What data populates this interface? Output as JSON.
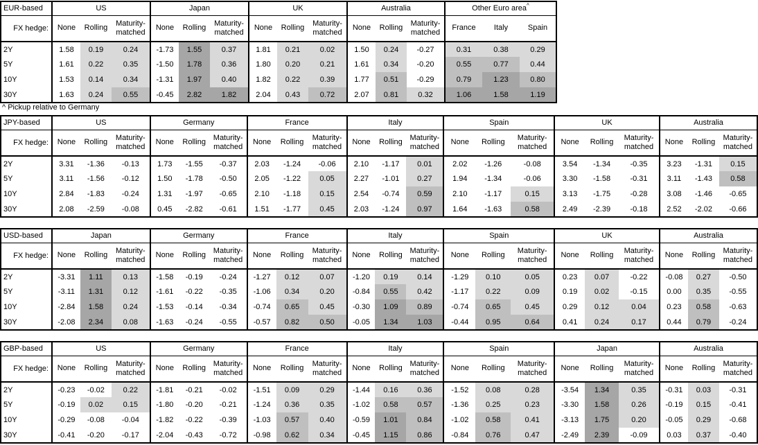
{
  "footnote": "^ Pickup relative to Germany",
  "row_header_label": "FX hedge:",
  "tenors": [
    "2Y",
    "5Y",
    "10Y",
    "30Y"
  ],
  "hedge_columns": [
    "None",
    "Rolling",
    "Maturity-matched"
  ],
  "colors": {
    "shade_light": "#d9d9d9",
    "shade_medium": "#bfbfbf",
    "shade_dark": "#a6a6a6",
    "border": "#000000",
    "background": "#ffffff"
  },
  "shading_rule": {
    "applies_to": "all value columns except None",
    "bands": [
      {
        "range": "0 to 0.5",
        "color": "shade_light"
      },
      {
        "range": "0.5 to 1.0",
        "color": "shade_medium"
      },
      {
        "range": "above 1.0",
        "color": "shade_dark"
      },
      {
        "range": "0 or below",
        "color": "background"
      }
    ]
  },
  "tables": [
    {
      "base": "EUR-based",
      "groups": [
        {
          "name": "US",
          "columns": [
            "None",
            "Rolling",
            "Maturity-matched"
          ],
          "rows": [
            [
              "1.58",
              "0.19",
              "0.24"
            ],
            [
              "1.61",
              "0.22",
              "0.35"
            ],
            [
              "1.53",
              "0.14",
              "0.34"
            ],
            [
              "1.63",
              "0.24",
              "0.55"
            ]
          ]
        },
        {
          "name": "Japan",
          "columns": [
            "None",
            "Rolling",
            "Maturity-matched"
          ],
          "rows": [
            [
              "-1.73",
              "1.55",
              "0.37"
            ],
            [
              "-1.50",
              "1.78",
              "0.36"
            ],
            [
              "-1.31",
              "1.97",
              "0.40"
            ],
            [
              "-0.45",
              "2.82",
              "1.82"
            ]
          ]
        },
        {
          "name": "UK",
          "columns": [
            "None",
            "Rolling",
            "Maturity-matched"
          ],
          "rows": [
            [
              "1.81",
              "0.21",
              "0.02"
            ],
            [
              "1.80",
              "0.20",
              "0.21"
            ],
            [
              "1.82",
              "0.22",
              "0.39"
            ],
            [
              "2.04",
              "0.43",
              "0.72"
            ]
          ]
        },
        {
          "name": "Australia",
          "columns": [
            "None",
            "Rolling",
            "Maturity-matched"
          ],
          "rows": [
            [
              "1.50",
              "0.24",
              "-0.27"
            ],
            [
              "1.61",
              "0.34",
              "-0.20"
            ],
            [
              "1.77",
              "0.51",
              "-0.29"
            ],
            [
              "2.07",
              "0.81",
              "0.32"
            ]
          ]
        },
        {
          "name": "Other Euro area",
          "marker": "^",
          "columns": [
            "France",
            "Italy",
            "Spain"
          ],
          "rows": [
            [
              "0.31",
              "0.38",
              "0.29"
            ],
            [
              "0.55",
              "0.77",
              "0.44"
            ],
            [
              "0.79",
              "1.23",
              "0.80"
            ],
            [
              "1.06",
              "1.58",
              "1.19"
            ]
          ]
        }
      ]
    },
    {
      "base": "JPY-based",
      "groups": [
        {
          "name": "US",
          "columns": [
            "None",
            "Rolling",
            "Maturity-matched"
          ],
          "rows": [
            [
              "3.31",
              "-1.36",
              "-0.13"
            ],
            [
              "3.11",
              "-1.56",
              "-0.12"
            ],
            [
              "2.84",
              "-1.83",
              "-0.24"
            ],
            [
              "2.08",
              "-2.59",
              "-0.08"
            ]
          ]
        },
        {
          "name": "Germany",
          "columns": [
            "None",
            "Rolling",
            "Maturity-matched"
          ],
          "rows": [
            [
              "1.73",
              "-1.55",
              "-0.37"
            ],
            [
              "1.50",
              "-1.78",
              "-0.50"
            ],
            [
              "1.31",
              "-1.97",
              "-0.65"
            ],
            [
              "0.45",
              "-2.82",
              "-0.61"
            ]
          ]
        },
        {
          "name": "France",
          "columns": [
            "None",
            "Rolling",
            "Maturity-matched"
          ],
          "rows": [
            [
              "2.03",
              "-1.24",
              "-0.06"
            ],
            [
              "2.05",
              "-1.22",
              "0.05"
            ],
            [
              "2.10",
              "-1.18",
              "0.15"
            ],
            [
              "1.51",
              "-1.77",
              "0.45"
            ]
          ]
        },
        {
          "name": "Italy",
          "columns": [
            "None",
            "Rolling",
            "Maturity-matched"
          ],
          "rows": [
            [
              "2.10",
              "-1.17",
              "0.01"
            ],
            [
              "2.27",
              "-1.01",
              "0.27"
            ],
            [
              "2.54",
              "-0.74",
              "0.59"
            ],
            [
              "2.03",
              "-1.24",
              "0.97"
            ]
          ]
        },
        {
          "name": "Spain",
          "columns": [
            "None",
            "Rolling",
            "Maturity-matched"
          ],
          "rows": [
            [
              "2.02",
              "-1.26",
              "-0.08"
            ],
            [
              "1.94",
              "-1.34",
              "-0.06"
            ],
            [
              "2.10",
              "-1.17",
              "0.15"
            ],
            [
              "1.64",
              "-1.63",
              "0.58"
            ]
          ]
        },
        {
          "name": "UK",
          "columns": [
            "None",
            "Rolling",
            "Maturity-matched"
          ],
          "rows": [
            [
              "3.54",
              "-1.34",
              "-0.35"
            ],
            [
              "3.30",
              "-1.58",
              "-0.31"
            ],
            [
              "3.13",
              "-1.75",
              "-0.28"
            ],
            [
              "2.49",
              "-2.39",
              "-0.18"
            ]
          ]
        },
        {
          "name": "Australia",
          "columns": [
            "None",
            "Rolling",
            "Maturity-matched"
          ],
          "rows": [
            [
              "3.23",
              "-1.31",
              "0.15"
            ],
            [
              "3.11",
              "-1.43",
              "0.58"
            ],
            [
              "3.08",
              "-1.46",
              "-0.65"
            ],
            [
              "2.52",
              "-2.02",
              "-0.66"
            ]
          ]
        }
      ]
    },
    {
      "base": "USD-based",
      "groups": [
        {
          "name": "Japan",
          "columns": [
            "None",
            "Rolling",
            "Maturity-matched"
          ],
          "rows": [
            [
              "-3.31",
              "1.11",
              "0.13"
            ],
            [
              "-3.11",
              "1.31",
              "0.12"
            ],
            [
              "-2.84",
              "1.58",
              "0.24"
            ],
            [
              "-2.08",
              "2.34",
              "0.08"
            ]
          ]
        },
        {
          "name": "Germany",
          "columns": [
            "None",
            "Rolling",
            "Maturity-matched"
          ],
          "rows": [
            [
              "-1.58",
              "-0.19",
              "-0.24"
            ],
            [
              "-1.61",
              "-0.22",
              "-0.35"
            ],
            [
              "-1.53",
              "-0.14",
              "-0.34"
            ],
            [
              "-1.63",
              "-0.24",
              "-0.55"
            ]
          ]
        },
        {
          "name": "France",
          "columns": [
            "None",
            "Rolling",
            "Maturity-matched"
          ],
          "rows": [
            [
              "-1.27",
              "0.12",
              "0.07"
            ],
            [
              "-1.06",
              "0.34",
              "0.20"
            ],
            [
              "-0.74",
              "0.65",
              "0.45"
            ],
            [
              "-0.57",
              "0.82",
              "0.50"
            ]
          ]
        },
        {
          "name": "Italy",
          "columns": [
            "None",
            "Rolling",
            "Maturity-matched"
          ],
          "rows": [
            [
              "-1.20",
              "0.19",
              "0.14"
            ],
            [
              "-0.84",
              "0.55",
              "0.42"
            ],
            [
              "-0.30",
              "1.09",
              "0.89"
            ],
            [
              "-0.05",
              "1.34",
              "1.03"
            ]
          ]
        },
        {
          "name": "Spain",
          "columns": [
            "None",
            "Rolling",
            "Maturity-matched"
          ],
          "rows": [
            [
              "-1.29",
              "0.10",
              "0.05"
            ],
            [
              "-1.17",
              "0.22",
              "0.09"
            ],
            [
              "-0.74",
              "0.65",
              "0.45"
            ],
            [
              "-0.44",
              "0.95",
              "0.64"
            ]
          ]
        },
        {
          "name": "UK",
          "columns": [
            "None",
            "Rolling",
            "Maturity-matched"
          ],
          "rows": [
            [
              "0.23",
              "0.07",
              "-0.22"
            ],
            [
              "0.19",
              "0.02",
              "-0.15"
            ],
            [
              "0.29",
              "0.12",
              "0.04"
            ],
            [
              "0.41",
              "0.24",
              "0.17"
            ]
          ]
        },
        {
          "name": "Australia",
          "columns": [
            "None",
            "Rolling",
            "Maturity-matched"
          ],
          "rows": [
            [
              "-0.08",
              "0.27",
              "-0.50"
            ],
            [
              "0.00",
              "0.35",
              "-0.55"
            ],
            [
              "0.23",
              "0.58",
              "-0.63"
            ],
            [
              "0.44",
              "0.79",
              "-0.24"
            ]
          ]
        }
      ]
    },
    {
      "base": "GBP-based",
      "groups": [
        {
          "name": "US",
          "columns": [
            "None",
            "Rolling",
            "Maturity-matched"
          ],
          "rows": [
            [
              "-0.23",
              "-0.02",
              "0.22"
            ],
            [
              "-0.19",
              "0.02",
              "0.15"
            ],
            [
              "-0.29",
              "-0.08",
              "-0.04"
            ],
            [
              "-0.41",
              "-0.20",
              "-0.17"
            ]
          ]
        },
        {
          "name": "Germany",
          "columns": [
            "None",
            "Rolling",
            "Maturity-matched"
          ],
          "rows": [
            [
              "-1.81",
              "-0.21",
              "-0.02"
            ],
            [
              "-1.80",
              "-0.20",
              "-0.21"
            ],
            [
              "-1.82",
              "-0.22",
              "-0.39"
            ],
            [
              "-2.04",
              "-0.43",
              "-0.72"
            ]
          ]
        },
        {
          "name": "France",
          "columns": [
            "None",
            "Rolling",
            "Maturity-matched"
          ],
          "rows": [
            [
              "-1.51",
              "0.09",
              "0.29"
            ],
            [
              "-1.24",
              "0.36",
              "0.35"
            ],
            [
              "-1.03",
              "0.57",
              "0.40"
            ],
            [
              "-0.98",
              "0.62",
              "0.34"
            ]
          ]
        },
        {
          "name": "Italy",
          "columns": [
            "None",
            "Rolling",
            "Maturity-matched"
          ],
          "rows": [
            [
              "-1.44",
              "0.16",
              "0.36"
            ],
            [
              "-1.02",
              "0.58",
              "0.57"
            ],
            [
              "-0.59",
              "1.01",
              "0.84"
            ],
            [
              "-0.45",
              "1.15",
              "0.86"
            ]
          ]
        },
        {
          "name": "Spain",
          "columns": [
            "None",
            "Rolling",
            "Maturity-matched"
          ],
          "rows": [
            [
              "-1.52",
              "0.08",
              "0.28"
            ],
            [
              "-1.36",
              "0.25",
              "0.23"
            ],
            [
              "-1.02",
              "0.58",
              "0.41"
            ],
            [
              "-0.84",
              "0.76",
              "0.47"
            ]
          ]
        },
        {
          "name": "Japan",
          "columns": [
            "None",
            "Rolling",
            "Maturity-matched"
          ],
          "rows": [
            [
              "-3.54",
              "1.34",
              "0.35"
            ],
            [
              "-3.30",
              "1.58",
              "0.26"
            ],
            [
              "-3.13",
              "1.75",
              "0.20"
            ],
            [
              "-2.49",
              "2.39",
              "-0.09"
            ]
          ]
        },
        {
          "name": "Australia",
          "columns": [
            "None",
            "Rolling",
            "Maturity-matched"
          ],
          "rows": [
            [
              "-0.31",
              "0.03",
              "-0.31"
            ],
            [
              "-0.19",
              "0.15",
              "-0.41"
            ],
            [
              "-0.05",
              "0.29",
              "-0.68"
            ],
            [
              "0.03",
              "0.37",
              "-0.40"
            ]
          ]
        }
      ]
    }
  ]
}
